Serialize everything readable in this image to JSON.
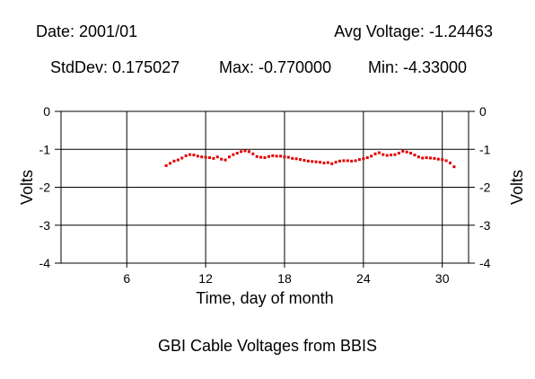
{
  "header": {
    "date": "Date: 2001/01",
    "avg_voltage": "Avg Voltage: -1.24463",
    "stddev": "StdDev: 0.175027",
    "max": "Max: -0.770000",
    "min": "Min: -4.33000"
  },
  "caption": "GBI Cable Voltages from BBIS",
  "chart_data": {
    "type": "scatter",
    "xlabel": "Time, day of month",
    "ylabel": "Volts",
    "xlim": [
      1,
      32
    ],
    "ylim": [
      -4,
      0
    ],
    "x_ticks": [
      6,
      12,
      18,
      24,
      30
    ],
    "y_ticks": [
      0,
      -1,
      -2,
      -3,
      -4
    ],
    "grid": true,
    "marker_color": "#e00000",
    "series": [
      {
        "x": [
          9.0,
          9.3,
          9.6,
          9.9,
          10.2,
          10.5,
          10.8,
          11.1,
          11.4,
          11.7,
          12.0,
          12.3,
          12.6,
          12.9,
          13.2,
          13.5,
          13.8,
          14.1,
          14.4,
          14.7,
          15.0,
          15.3,
          15.6,
          15.9,
          16.2,
          16.5,
          16.8,
          17.1,
          17.4,
          17.7,
          18.0,
          18.3,
          18.6,
          18.9,
          19.2,
          19.5,
          19.8,
          20.1,
          20.4,
          20.7,
          21.0,
          21.3,
          21.6,
          21.9,
          22.2,
          22.5,
          22.8,
          23.1,
          23.4,
          23.7,
          24.0,
          24.3,
          24.6,
          24.9,
          25.2,
          25.5,
          25.8,
          26.1,
          26.4,
          26.7,
          27.0,
          27.3,
          27.6,
          27.9,
          28.2,
          28.5,
          28.8,
          29.1,
          29.4,
          29.7,
          30.0,
          30.3,
          30.6,
          30.9
        ],
        "y": [
          -1.43,
          -1.37,
          -1.31,
          -1.28,
          -1.23,
          -1.17,
          -1.14,
          -1.15,
          -1.18,
          -1.2,
          -1.21,
          -1.22,
          -1.24,
          -1.2,
          -1.26,
          -1.28,
          -1.2,
          -1.14,
          -1.1,
          -1.06,
          -1.04,
          -1.06,
          -1.12,
          -1.19,
          -1.21,
          -1.22,
          -1.19,
          -1.17,
          -1.18,
          -1.18,
          -1.2,
          -1.21,
          -1.24,
          -1.25,
          -1.27,
          -1.29,
          -1.31,
          -1.32,
          -1.33,
          -1.34,
          -1.36,
          -1.35,
          -1.38,
          -1.34,
          -1.31,
          -1.3,
          -1.3,
          -1.31,
          -1.3,
          -1.27,
          -1.25,
          -1.22,
          -1.18,
          -1.12,
          -1.09,
          -1.14,
          -1.16,
          -1.15,
          -1.14,
          -1.1,
          -1.05,
          -1.07,
          -1.1,
          -1.15,
          -1.2,
          -1.23,
          -1.22,
          -1.23,
          -1.24,
          -1.26,
          -1.27,
          -1.3,
          -1.36,
          -1.46
        ]
      }
    ]
  }
}
